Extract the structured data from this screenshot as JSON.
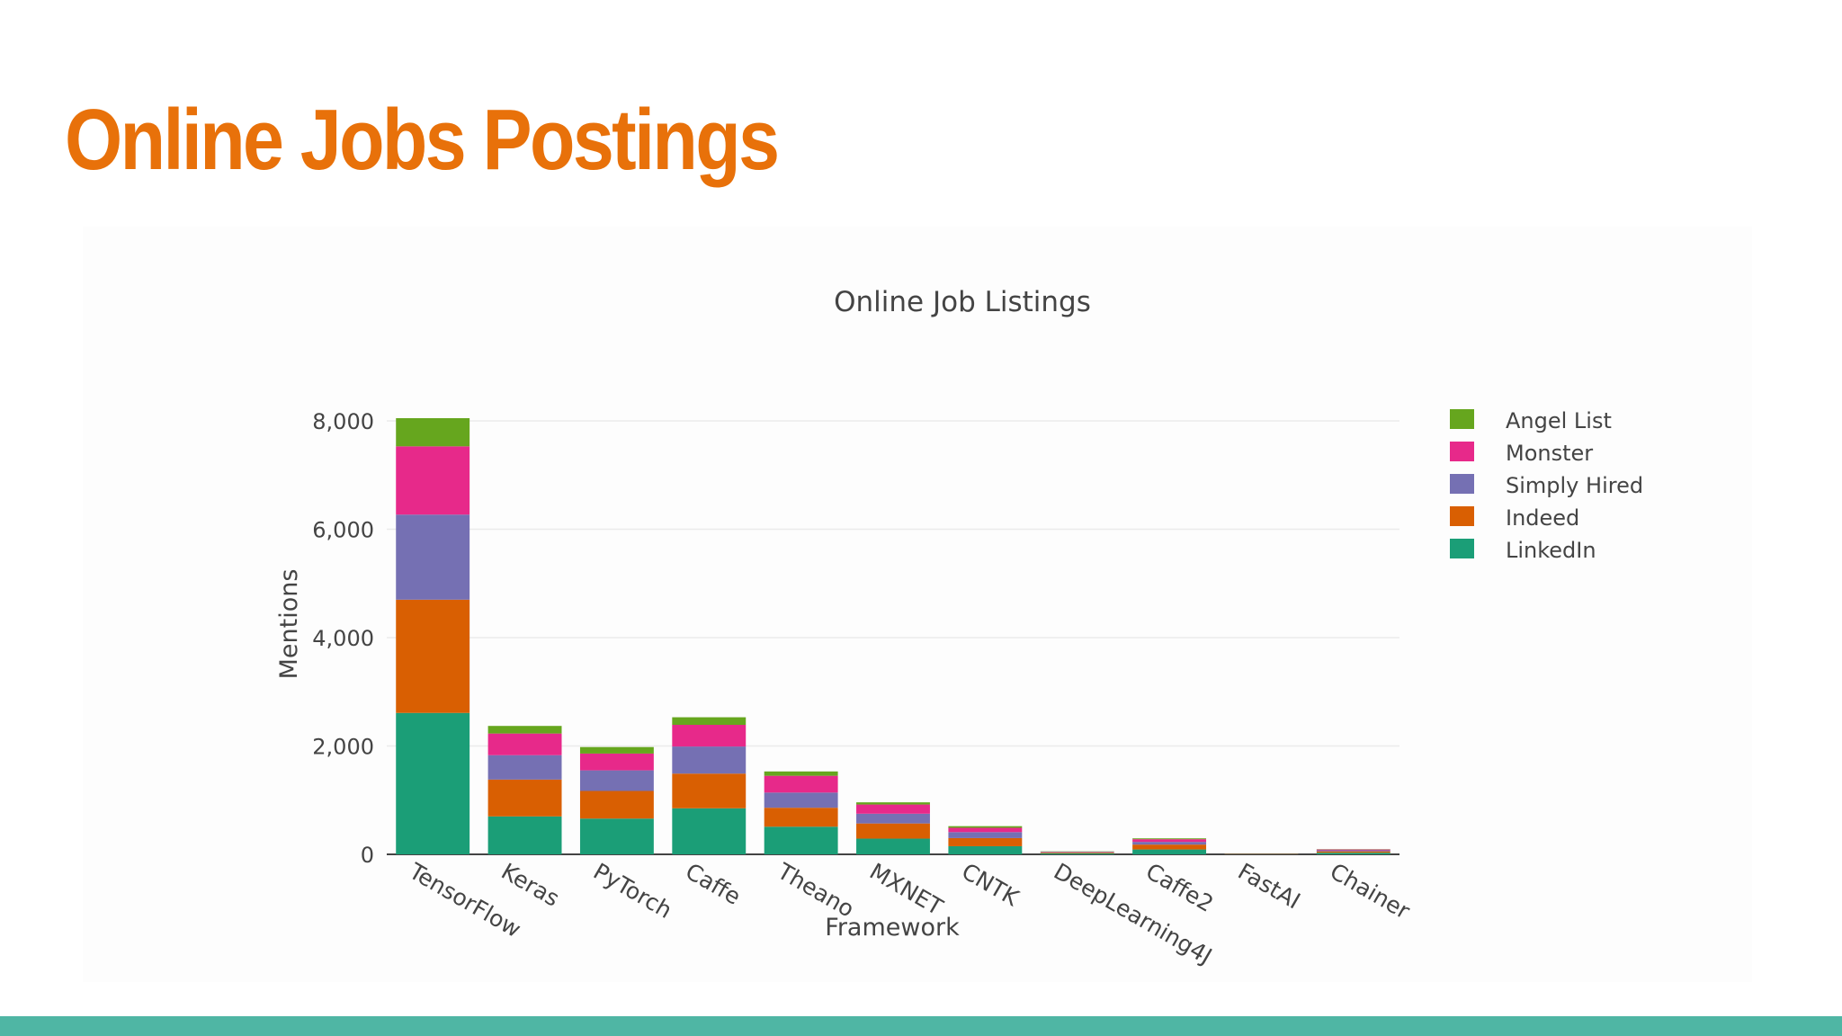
{
  "slide": {
    "title": "Online Jobs Postings"
  },
  "colors": {
    "title": "#e8710a",
    "footer_bar": "#4fb6a4"
  },
  "chart_data": {
    "type": "bar",
    "stacked": true,
    "title": "Online Job Listings",
    "xlabel": "Framework",
    "ylabel": "Mentions",
    "ylim": [
      0,
      8000
    ],
    "yticks": [
      0,
      2000,
      4000,
      6000,
      8000
    ],
    "ytick_labels": [
      "0",
      "2,000",
      "4,000",
      "6,000",
      "8,000"
    ],
    "grid": true,
    "legend_position": "top-right",
    "categories": [
      "TensorFlow",
      "Keras",
      "PyTorch",
      "Caffe",
      "Theano",
      "MXNET",
      "CNTK",
      "DeepLearning4J",
      "Caffe2",
      "FastAI",
      "Chainer"
    ],
    "series": [
      {
        "name": "LinkedIn",
        "color": "#1b9e77",
        "values": [
          2610,
          700,
          660,
          850,
          510,
          290,
          150,
          20,
          90,
          5,
          30
        ]
      },
      {
        "name": "Indeed",
        "color": "#d95f02",
        "values": [
          2090,
          680,
          510,
          640,
          350,
          280,
          150,
          15,
          90,
          5,
          25
        ]
      },
      {
        "name": "Simply Hired",
        "color": "#7570b3",
        "values": [
          1570,
          450,
          380,
          500,
          280,
          180,
          110,
          10,
          50,
          3,
          20
        ]
      },
      {
        "name": "Monster",
        "color": "#e7298a",
        "values": [
          1260,
          400,
          310,
          400,
          310,
          170,
          80,
          5,
          50,
          2,
          15
        ]
      },
      {
        "name": "Angel List",
        "color": "#66a61e",
        "values": [
          520,
          140,
          120,
          140,
          80,
          40,
          30,
          5,
          15,
          2,
          5
        ]
      }
    ],
    "legend_order": [
      "Angel List",
      "Monster",
      "Simply Hired",
      "Indeed",
      "LinkedIn"
    ]
  }
}
